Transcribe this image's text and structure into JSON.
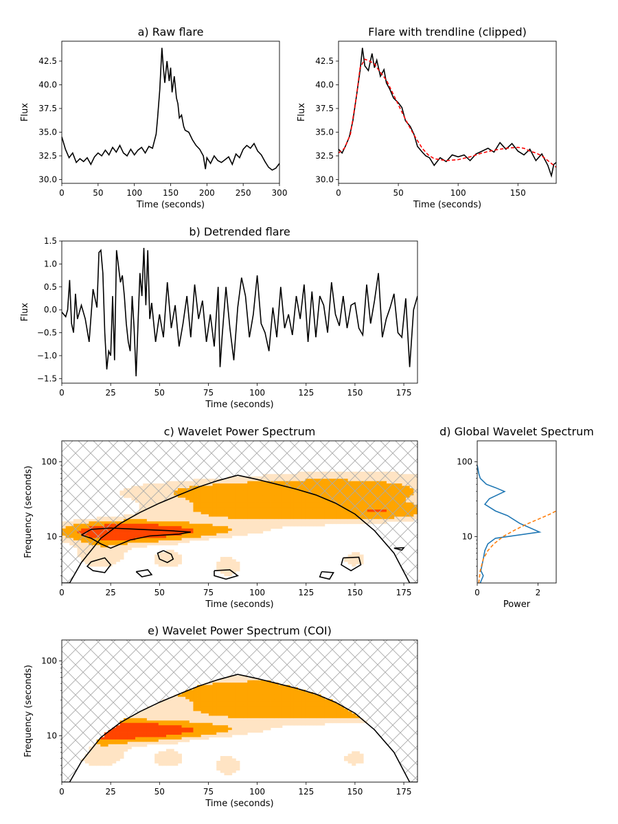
{
  "chart_data": [
    {
      "id": "a",
      "type": "line",
      "title": "a) Raw flare",
      "xlabel": "Time (seconds)",
      "ylabel": "Flux",
      "xlim": [
        0,
        300
      ],
      "ylim": [
        29.6,
        44.6
      ],
      "xticks": [
        0,
        50,
        100,
        150,
        200,
        250,
        300
      ],
      "yticks": [
        30.0,
        32.5,
        35.0,
        37.5,
        40.0,
        42.5
      ],
      "ytick_labels": [
        "30.0",
        "32.5",
        "35.0",
        "37.5",
        "40.0",
        "42.5"
      ],
      "series": [
        {
          "color": "#000000",
          "x": [
            0,
            5,
            10,
            15,
            20,
            25,
            30,
            35,
            40,
            45,
            50,
            55,
            60,
            65,
            70,
            75,
            80,
            85,
            90,
            95,
            100,
            105,
            110,
            115,
            120,
            125,
            130,
            132,
            135,
            138,
            140,
            142,
            145,
            148,
            150,
            152,
            155,
            158,
            160,
            162,
            165,
            168,
            170,
            175,
            180,
            185,
            190,
            195,
            198,
            200,
            205,
            210,
            215,
            220,
            225,
            230,
            235,
            240,
            245,
            250,
            255,
            260,
            265,
            270,
            275,
            280,
            285,
            290,
            295,
            300
          ],
          "y": [
            34.5,
            33.2,
            32.3,
            32.8,
            31.8,
            32.2,
            31.9,
            32.3,
            31.6,
            32.4,
            32.8,
            32.5,
            33.1,
            32.6,
            33.4,
            32.9,
            33.6,
            32.8,
            32.5,
            33.2,
            32.6,
            33.1,
            33.4,
            32.8,
            33.5,
            33.3,
            34.8,
            36.5,
            39.5,
            43.9,
            41.8,
            40.2,
            42.5,
            40.4,
            41.8,
            39.2,
            40.9,
            38.6,
            38.0,
            36.5,
            36.8,
            35.6,
            35.2,
            35.0,
            34.2,
            33.6,
            33.2,
            32.5,
            31.1,
            32.3,
            31.7,
            32.5,
            32.0,
            31.8,
            32.1,
            32.4,
            31.6,
            32.7,
            32.3,
            33.2,
            33.6,
            33.3,
            33.8,
            33.0,
            32.6,
            31.9,
            31.3,
            31.0,
            31.2,
            31.7
          ]
        }
      ]
    },
    {
      "id": "a2",
      "type": "line",
      "title": "Flare with trendline (clipped)",
      "xlabel": "Time (seconds)",
      "ylabel": "Flux",
      "xlim": [
        0,
        182
      ],
      "ylim": [
        29.6,
        44.6
      ],
      "xticks": [
        0,
        50,
        100,
        150
      ],
      "yticks": [
        30.0,
        32.5,
        35.0,
        37.5,
        40.0,
        42.5
      ],
      "ytick_labels": [
        "30.0",
        "32.5",
        "35.0",
        "37.5",
        "40.0",
        "42.5"
      ],
      "series": [
        {
          "color": "#000000",
          "x": [
            0,
            3,
            6,
            9,
            12,
            15,
            18,
            20,
            22,
            25,
            28,
            30,
            32,
            35,
            38,
            40,
            43,
            46,
            50,
            53,
            56,
            60,
            63,
            66,
            70,
            73,
            76,
            80,
            85,
            90,
            95,
            100,
            105,
            110,
            115,
            120,
            125,
            130,
            135,
            140,
            145,
            150,
            155,
            160,
            165,
            170,
            175,
            178,
            180,
            182
          ],
          "y": [
            33.2,
            32.8,
            33.6,
            34.5,
            36.2,
            38.8,
            41.5,
            43.9,
            42.0,
            41.5,
            43.3,
            41.8,
            42.6,
            40.9,
            41.6,
            40.2,
            39.5,
            38.6,
            38.1,
            37.6,
            36.2,
            35.6,
            34.8,
            33.5,
            32.9,
            32.5,
            32.3,
            31.5,
            32.3,
            31.9,
            32.6,
            32.4,
            32.6,
            32.0,
            32.7,
            33.0,
            33.3,
            32.9,
            33.9,
            33.2,
            33.8,
            33.0,
            32.6,
            33.2,
            32.0,
            32.7,
            31.5,
            30.4,
            31.6,
            31.8
          ]
        },
        {
          "color": "#ff0000",
          "dashed": true,
          "x": [
            0,
            5,
            10,
            15,
            18,
            22,
            26,
            30,
            35,
            40,
            45,
            50,
            55,
            60,
            65,
            70,
            75,
            80,
            90,
            100,
            110,
            120,
            130,
            140,
            150,
            155,
            160,
            165,
            170,
            175,
            180,
            182
          ],
          "y": [
            32.8,
            33.3,
            34.8,
            38.8,
            41.8,
            42.7,
            42.5,
            42.2,
            41.3,
            40.5,
            39.2,
            37.9,
            36.6,
            35.4,
            34.3,
            33.3,
            32.6,
            32.2,
            32.0,
            32.1,
            32.4,
            32.8,
            33.1,
            33.3,
            33.4,
            33.3,
            33.0,
            32.8,
            32.5,
            32.0,
            31.5,
            31.3
          ]
        }
      ]
    },
    {
      "id": "b",
      "type": "line",
      "title": "b) Detrended flare",
      "xlabel": "Time (seconds)",
      "ylabel": "Flux",
      "xlim": [
        0,
        182
      ],
      "ylim": [
        -1.6,
        1.5
      ],
      "xticks": [
        0,
        25,
        50,
        75,
        100,
        125,
        150,
        175
      ],
      "yticks": [
        -1.5,
        -1.0,
        -0.5,
        0.0,
        0.5,
        1.0,
        1.5
      ],
      "ytick_labels": [
        "−1.5",
        "−1.0",
        "−0.5",
        "0.0",
        "0.5",
        "1.0",
        "1.5"
      ],
      "series": [
        {
          "color": "#000000",
          "x": [
            0,
            2,
            3,
            4,
            5,
            6,
            7,
            8,
            10,
            12,
            14,
            16,
            18,
            19,
            20,
            21,
            22,
            23,
            24,
            25,
            26,
            27,
            28,
            30,
            31,
            32,
            33,
            34,
            35,
            36,
            37,
            38,
            39,
            40,
            41,
            42,
            43,
            44,
            45,
            46,
            48,
            50,
            52,
            54,
            56,
            58,
            60,
            62,
            64,
            66,
            68,
            70,
            72,
            74,
            76,
            78,
            80,
            81,
            82,
            84,
            86,
            88,
            90,
            92,
            94,
            96,
            98,
            100,
            102,
            104,
            106,
            108,
            110,
            112,
            114,
            116,
            118,
            120,
            122,
            124,
            126,
            128,
            130,
            132,
            134,
            136,
            138,
            140,
            142,
            144,
            146,
            148,
            150,
            152,
            154,
            156,
            158,
            160,
            162,
            164,
            166,
            168,
            170,
            172,
            174,
            176,
            178,
            180,
            182
          ],
          "y": [
            -0.05,
            -0.15,
            0.0,
            0.65,
            -0.3,
            -0.5,
            0.35,
            -0.2,
            0.1,
            -0.2,
            -0.7,
            0.45,
            0.05,
            1.25,
            1.3,
            0.8,
            -0.5,
            -1.3,
            -0.9,
            -1.0,
            0.3,
            -1.1,
            1.3,
            0.6,
            0.75,
            0.3,
            -0.3,
            -0.7,
            -0.9,
            0.3,
            -0.4,
            -1.45,
            -0.3,
            0.8,
            0.3,
            1.35,
            0.1,
            1.3,
            -0.2,
            0.15,
            -0.7,
            -0.1,
            -0.6,
            0.6,
            -0.4,
            0.1,
            -0.8,
            -0.3,
            0.3,
            -0.6,
            0.55,
            -0.2,
            0.2,
            -0.7,
            -0.1,
            -0.8,
            0.5,
            -1.25,
            -0.6,
            0.5,
            -0.4,
            -1.1,
            0.05,
            0.7,
            0.3,
            -0.6,
            -0.1,
            0.75,
            -0.3,
            -0.5,
            -0.9,
            0.05,
            -0.6,
            0.5,
            -0.4,
            -0.1,
            -0.55,
            0.3,
            -0.2,
            0.55,
            -0.7,
            0.4,
            -0.6,
            0.3,
            0.1,
            -0.5,
            0.6,
            -0.1,
            -0.35,
            0.3,
            -0.4,
            0.1,
            0.15,
            -0.4,
            -0.55,
            0.55,
            -0.3,
            0.2,
            0.8,
            -0.6,
            -0.2,
            0.05,
            0.35,
            -0.5,
            -0.6,
            0.25,
            -1.25,
            0.0,
            0.3
          ]
        }
      ]
    },
    {
      "id": "c",
      "type": "heatmap",
      "title": "c) Wavelet Power Spectrum",
      "xlabel": "Time (seconds)",
      "ylabel": "Frequency (seconds)",
      "xlim": [
        0,
        182
      ],
      "ylim": [
        2.4,
        190
      ],
      "y_scale": "log",
      "xticks": [
        0,
        25,
        50,
        75,
        100,
        125,
        150,
        175
      ],
      "yticks": [
        10,
        100
      ],
      "levels_colors": [
        "#ffe4c4",
        "#ffa500",
        "#ff4500"
      ],
      "power_blobs": [
        {
          "t": 32,
          "p": 11.5,
          "wt": 20,
          "wlp": 0.09,
          "a": 3.0
        },
        {
          "t": 55,
          "p": 12.0,
          "wt": 26,
          "wlp": 0.06,
          "a": 1.4
        },
        {
          "t": 110,
          "p": 22,
          "wt": 42,
          "wlp": 0.12,
          "a": 1.3
        },
        {
          "t": 105,
          "p": 40,
          "wt": 45,
          "wlp": 0.1,
          "a": 1.3
        },
        {
          "t": 165,
          "p": 22,
          "wt": 14,
          "wlp": 0.07,
          "a": 1.2
        },
        {
          "t": 150,
          "p": 45,
          "wt": 40,
          "wlp": 0.18,
          "a": 0.7
        },
        {
          "t": 20,
          "p": 6,
          "wt": 10,
          "wlp": 0.16,
          "a": 0.7
        },
        {
          "t": 55,
          "p": 5,
          "wt": 7,
          "wlp": 0.1,
          "a": 0.6
        },
        {
          "t": 85,
          "p": 4,
          "wt": 6,
          "wlp": 0.12,
          "a": 0.6
        },
        {
          "t": 150,
          "p": 5,
          "wt": 5,
          "wlp": 0.08,
          "a": 0.6
        }
      ],
      "coi": {
        "t": [
          0,
          4,
          10,
          20,
          30,
          40,
          50,
          60,
          70,
          80,
          90,
          100,
          110,
          120,
          130,
          140,
          150,
          160,
          170,
          178,
          182
        ],
        "p": [
          2.4,
          2.4,
          4.5,
          9.5,
          15,
          21,
          28,
          36,
          46,
          56,
          66,
          58,
          50,
          43,
          36,
          28,
          20,
          12,
          6,
          2.4,
          2.4
        ]
      }
    },
    {
      "id": "d",
      "type": "line",
      "title": "d) Global Wavelet Spectrum",
      "xlabel": "Power",
      "ylabel": "",
      "xlim": [
        0,
        2.6
      ],
      "ylim": [
        2.4,
        190
      ],
      "y_scale": "log",
      "xticks": [
        0,
        2
      ],
      "yticks": [
        10,
        100
      ],
      "series": [
        {
          "color": "#1f77b4",
          "x": [
            0.0,
            0.05,
            0.1,
            0.3,
            0.6,
            0.9,
            0.4,
            0.25,
            0.6,
            1.0,
            1.4,
            2.05,
            0.6,
            0.35,
            0.25,
            0.2,
            0.15,
            0.12,
            0.2,
            0.1
          ],
          "p": [
            90,
            70,
            60,
            50,
            45,
            40,
            32,
            27,
            22,
            19,
            15,
            11.5,
            9.5,
            8,
            6.5,
            5,
            4,
            3.5,
            3,
            2.4
          ]
        },
        {
          "color": "#ff7f0e",
          "dashed": true,
          "x": [
            0.05,
            0.1,
            0.2,
            0.35,
            0.55,
            0.85,
            1.2,
            1.6,
            2.0,
            2.4,
            2.6
          ],
          "p": [
            2.4,
            3.5,
            5,
            6.5,
            8,
            10,
            12,
            14.5,
            17,
            20,
            22
          ]
        }
      ]
    },
    {
      "id": "e",
      "type": "heatmap",
      "title": "e) Wavelet Power Spectrum (COI)",
      "xlabel": "Time (seconds)",
      "ylabel": "Frequency (seconds)",
      "xlim": [
        0,
        182
      ],
      "ylim": [
        2.4,
        190
      ],
      "y_scale": "log",
      "xticks": [
        0,
        25,
        50,
        75,
        100,
        125,
        150,
        175
      ],
      "yticks": [
        10,
        100
      ]
    }
  ]
}
